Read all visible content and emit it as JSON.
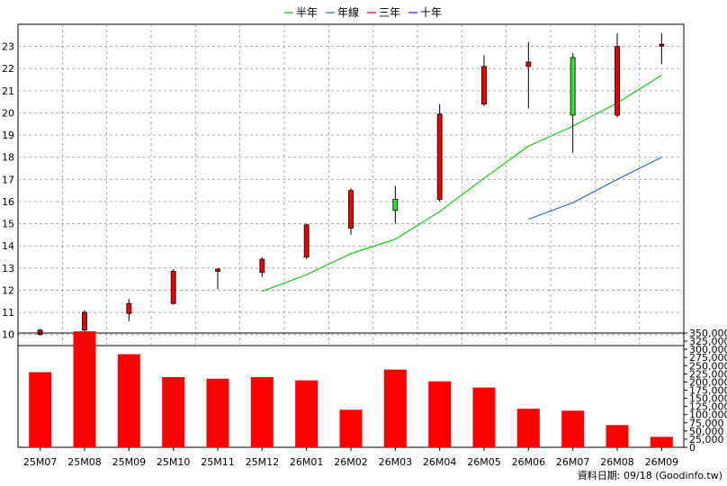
{
  "chart_data": [
    {
      "type": "candlestick",
      "legend": [
        {
          "name": "半年",
          "color": "#00cc00"
        },
        {
          "name": "年線",
          "color": "#1a5fd0"
        },
        {
          "name": "三年",
          "color": "#dd0000"
        },
        {
          "name": "十年",
          "color": "#6600cc"
        }
      ],
      "categories": [
        "25M07",
        "25M08",
        "25M09",
        "25M10",
        "25M11",
        "25M12",
        "26M01",
        "26M02",
        "26M03",
        "26M04",
        "26M05",
        "26M06",
        "26M07",
        "26M08",
        "26M09"
      ],
      "ohlc": [
        {
          "open": 10.0,
          "high": 10.25,
          "low": 9.95,
          "close": 10.2
        },
        {
          "open": 10.2,
          "high": 11.1,
          "low": 10.05,
          "close": 11.0
        },
        {
          "open": 10.95,
          "high": 11.6,
          "low": 10.6,
          "close": 11.4
        },
        {
          "open": 11.4,
          "high": 12.95,
          "low": 11.35,
          "close": 12.85
        },
        {
          "open": 12.85,
          "high": 13.0,
          "low": 12.05,
          "close": 12.95
        },
        {
          "open": 12.8,
          "high": 13.5,
          "low": 12.6,
          "close": 13.4
        },
        {
          "open": 13.5,
          "high": 15.0,
          "low": 13.4,
          "close": 14.95
        },
        {
          "open": 14.8,
          "high": 16.6,
          "low": 14.5,
          "close": 16.5
        },
        {
          "open": 16.1,
          "high": 16.7,
          "low": 15.0,
          "close": 15.6
        },
        {
          "open": 16.1,
          "high": 20.4,
          "low": 16.0,
          "close": 19.95
        },
        {
          "open": 20.4,
          "high": 22.6,
          "low": 20.3,
          "close": 22.1
        },
        {
          "open": 22.1,
          "high": 23.2,
          "low": 20.2,
          "close": 22.3
        },
        {
          "open": 22.5,
          "high": 22.7,
          "low": 18.2,
          "close": 19.9
        },
        {
          "open": 19.9,
          "high": 23.6,
          "low": 19.8,
          "close": 23.0
        },
        {
          "open": 23.1,
          "high": 23.6,
          "low": 22.2,
          "close": 23.1
        }
      ],
      "ma_half_year": [
        null,
        null,
        null,
        null,
        null,
        11.95,
        12.7,
        13.65,
        14.3,
        15.55,
        17.05,
        18.5,
        19.4,
        20.45,
        21.7
      ],
      "ma_year": [
        null,
        null,
        null,
        null,
        null,
        null,
        null,
        null,
        null,
        null,
        null,
        15.2,
        15.95,
        17.0,
        18.0
      ],
      "yticks": [
        10,
        11,
        12,
        13,
        14,
        15,
        16,
        17,
        18,
        19,
        20,
        21,
        22,
        23
      ],
      "ylim": [
        9.5,
        24.0
      ]
    },
    {
      "type": "bar",
      "categories": [
        "25M07",
        "25M08",
        "25M09",
        "25M10",
        "25M11",
        "25M12",
        "26M01",
        "26M02",
        "26M03",
        "26M04",
        "26M05",
        "26M06",
        "26M07",
        "26M08",
        "26M09"
      ],
      "values": [
        230000,
        355000,
        285000,
        215000,
        210000,
        215000,
        205000,
        115000,
        238000,
        202000,
        183000,
        118000,
        112000,
        68000,
        32000
      ],
      "color": "#ff0000",
      "yticks": [
        "0",
        "25,000",
        "50,000",
        "75,000",
        "100,000",
        "125,000",
        "150,000",
        "175,000",
        "200,000",
        "225,000",
        "250,000",
        "275,000",
        "300,000",
        "325,000",
        "350,000"
      ],
      "ylim": [
        0,
        350000
      ]
    }
  ],
  "footer": "資料日期: 09/18  (Goodinfo.tw)"
}
